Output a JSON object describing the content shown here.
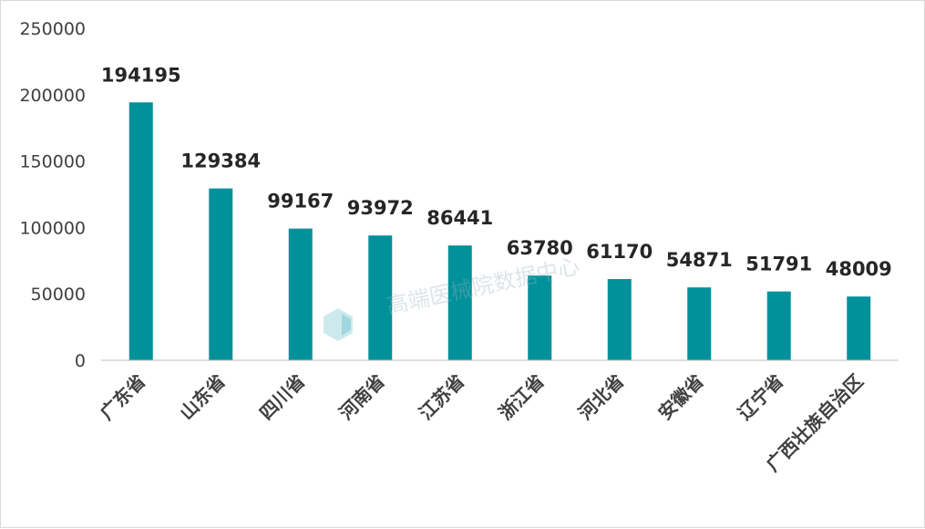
{
  "chart_data": {
    "type": "bar",
    "title": "",
    "xlabel": "",
    "ylabel": "",
    "categories": [
      "广东省",
      "山东省",
      "四川省",
      "河南省",
      "江苏省",
      "浙江省",
      "河北省",
      "安徽省",
      "辽宁省",
      "广西壮族自治区"
    ],
    "values": [
      194195,
      129384,
      99167,
      93972,
      86441,
      63780,
      61170,
      54871,
      51791,
      48009
    ],
    "ylim": [
      0,
      250000
    ],
    "yticks": [
      0,
      50000,
      100000,
      150000,
      200000,
      250000
    ],
    "grid": false,
    "legend": "none",
    "bar_color": "#00919a"
  },
  "watermark": "高端医械院数据中心"
}
